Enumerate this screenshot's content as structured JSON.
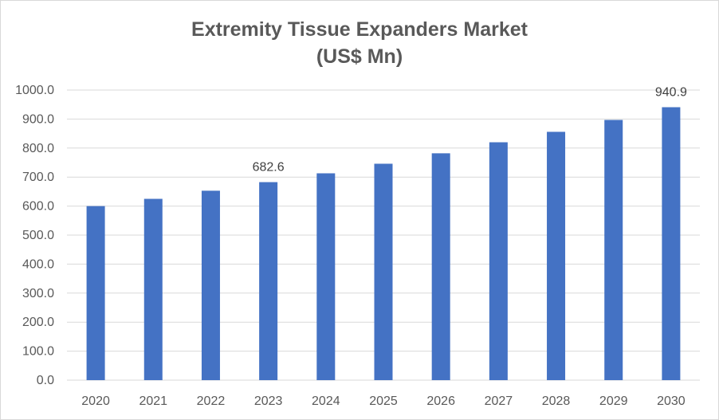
{
  "chart_data": {
    "type": "bar",
    "title_line1": "Extremity Tissue Expanders Market",
    "title_line2": "(US$ Mn)",
    "categories": [
      "2020",
      "2021",
      "2022",
      "2023",
      "2024",
      "2025",
      "2026",
      "2027",
      "2028",
      "2029",
      "2030"
    ],
    "series": [
      {
        "values": [
          600.0,
          625.0,
          653.0,
          682.6,
          713.0,
          746.0,
          782.0,
          820.0,
          856.0,
          897.0,
          940.9
        ],
        "color": "#4472c4"
      }
    ],
    "data_labels": [
      {
        "index": 3,
        "text": "682.6"
      },
      {
        "index": 10,
        "text": "940.9"
      }
    ],
    "yticks": [
      "0.0",
      "100.0",
      "200.0",
      "300.0",
      "400.0",
      "500.0",
      "600.0",
      "700.0",
      "800.0",
      "900.0",
      "1000.0"
    ],
    "ylim": [
      0,
      1000
    ],
    "grid": true,
    "gridline_color": "#d9d9d9",
    "legend": "none"
  }
}
